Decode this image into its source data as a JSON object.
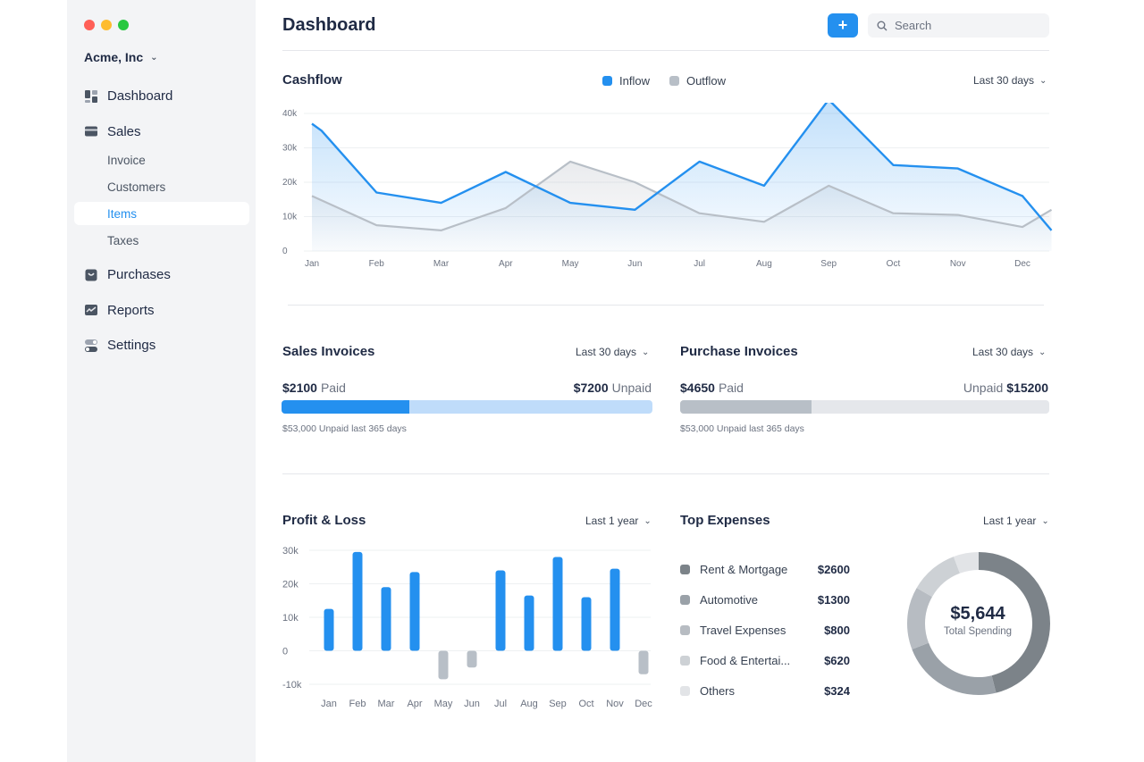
{
  "window": {
    "traffic_lights": [
      "#ff5f57",
      "#febc2e",
      "#28c840"
    ]
  },
  "sidebar": {
    "company": "Acme, Inc",
    "items": [
      {
        "label": "Dashboard",
        "icon": "dashboard-icon"
      },
      {
        "label": "Sales",
        "icon": "sales-icon",
        "children": [
          "Invoice",
          "Customers",
          "Items",
          "Taxes"
        ],
        "active_child": "Items"
      },
      {
        "label": "Purchases",
        "icon": "purchases-icon"
      },
      {
        "label": "Reports",
        "icon": "reports-icon"
      },
      {
        "label": "Settings",
        "icon": "settings-icon"
      }
    ]
  },
  "header": {
    "title": "Dashboard",
    "add_label": "+",
    "search_placeholder": "Search"
  },
  "colors": {
    "accent": "#2490ef",
    "accent_light": "#bfdcfa",
    "gray": "#b8bfc7",
    "gray_light": "#e5e7eb"
  },
  "cashflow": {
    "title": "Cashflow",
    "period": "Last 30 days",
    "legend_inflow": "Inflow",
    "legend_outflow": "Outflow"
  },
  "sales_invoices": {
    "title": "Sales Invoices",
    "period": "Last 30 days",
    "paid_amount": "$2100",
    "paid_label": "Paid",
    "unpaid_amount": "$7200",
    "unpaid_label": "Unpaid",
    "note": "$53,000 Unpaid last 365 days",
    "paid_fraction": 0.345
  },
  "purchase_invoices": {
    "title": "Purchase Invoices",
    "period": "Last 30 days",
    "paid_amount": "$4650",
    "paid_label": "Paid",
    "unpaid_amount": "$15200",
    "unpaid_label": "Unpaid",
    "note": "$53,000 Unpaid last 365 days",
    "paid_fraction": 0.355
  },
  "profit_loss": {
    "title": "Profit & Loss",
    "period": "Last 1 year"
  },
  "top_expenses": {
    "title": "Top Expenses",
    "period": "Last 1 year",
    "total": "$5,644",
    "total_label": "Total Spending",
    "items": [
      {
        "name": "Rent & Mortgage",
        "value": "$2600",
        "color": "#7c8389"
      },
      {
        "name": "Automotive",
        "value": "$1300",
        "color": "#9aa1a8"
      },
      {
        "name": "Travel Expenses",
        "value": "$800",
        "color": "#b7bcc2"
      },
      {
        "name": "Food & Entertai...",
        "value": "$620",
        "color": "#cdd1d5"
      },
      {
        "name": "Others",
        "value": "$324",
        "color": "#e2e4e7"
      }
    ]
  },
  "chart_data": [
    {
      "type": "line",
      "title": "Cashflow",
      "x": [
        "Jan",
        "Feb",
        "Mar",
        "Apr",
        "May",
        "Jun",
        "Jul",
        "Aug",
        "Sep",
        "Oct",
        "Nov",
        "Dec"
      ],
      "y_ticks": [
        "0",
        "10k",
        "20k",
        "30k",
        "40k"
      ],
      "ylim": [
        0,
        40000
      ],
      "series": [
        {
          "name": "Inflow",
          "values": [
            [
              0,
              37000
            ],
            [
              0.15,
              35000
            ],
            [
              1,
              17000
            ],
            [
              2,
              14000
            ],
            [
              3,
              23000
            ],
            [
              4,
              14000
            ],
            [
              5,
              12000
            ],
            [
              6,
              26000
            ],
            [
              7,
              19000
            ],
            [
              8,
              44000
            ],
            [
              9,
              25000
            ],
            [
              10,
              24000
            ],
            [
              11,
              16000
            ],
            [
              11.45,
              6000
            ]
          ],
          "fill": "area"
        },
        {
          "name": "Outflow",
          "values": [
            [
              0,
              16000
            ],
            [
              1,
              7500
            ],
            [
              2,
              6000
            ],
            [
              3,
              12500
            ],
            [
              4,
              26000
            ],
            [
              5,
              20000
            ],
            [
              6,
              11000
            ],
            [
              7,
              8500
            ],
            [
              8,
              19000
            ],
            [
              9,
              11000
            ],
            [
              10,
              10500
            ],
            [
              11,
              7000
            ],
            [
              11.45,
              12000
            ]
          ]
        }
      ],
      "grid": true
    },
    {
      "type": "bar",
      "title": "Profit & Loss",
      "categories": [
        "Jan",
        "Feb",
        "Mar",
        "Apr",
        "May",
        "Jun",
        "Jul",
        "Aug",
        "Sep",
        "Oct",
        "Nov",
        "Dec"
      ],
      "values": [
        12500,
        29500,
        19000,
        23500,
        -8500,
        -5000,
        24000,
        16500,
        28000,
        16000,
        24500,
        -7000
      ],
      "y_ticks": [
        "30k",
        "20k",
        "10k",
        "0",
        "-10k"
      ],
      "ylim": [
        -10000,
        30000
      ],
      "grid": true
    },
    {
      "type": "pie",
      "title": "Top Expenses",
      "categories": [
        "Rent & Mortgage",
        "Automotive",
        "Travel Expenses",
        "Food & Entertai...",
        "Others"
      ],
      "values": [
        2600,
        1300,
        800,
        620,
        324
      ],
      "donut": true
    }
  ]
}
